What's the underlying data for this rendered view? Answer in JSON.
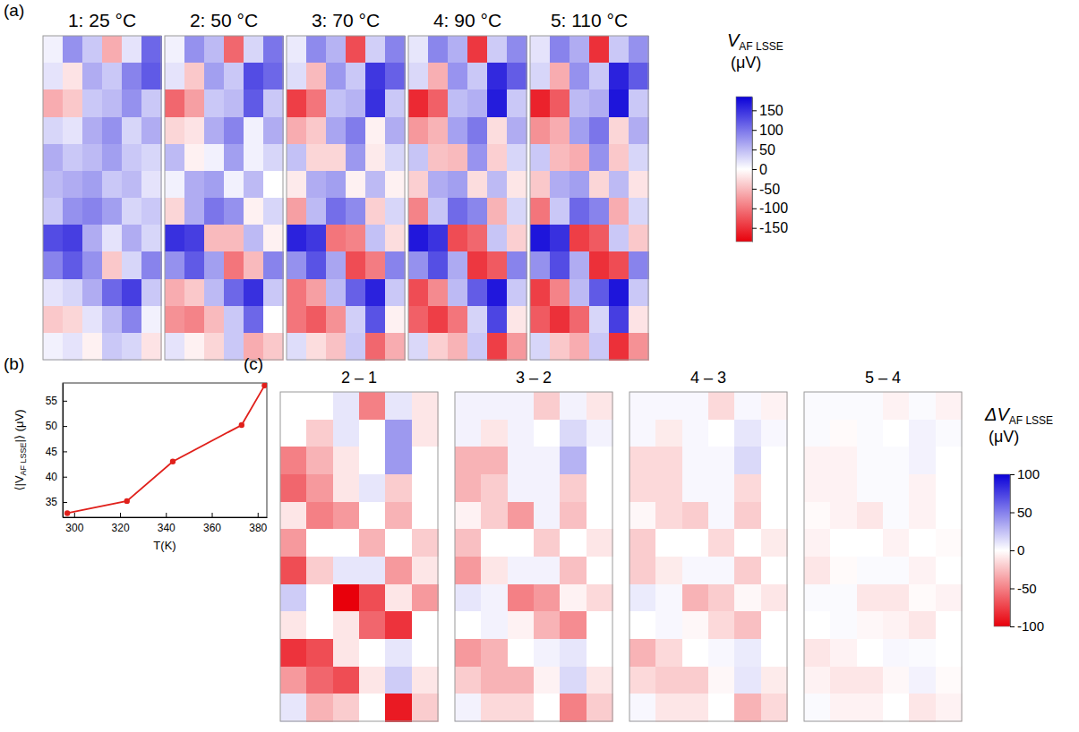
{
  "chart_data": [
    {
      "type": "heatmap",
      "panel": "(a)",
      "maps": [
        {
          "title": "1: 25 °C",
          "cells": [
            [
              10,
              80,
              40,
              -60,
              20,
              110
            ],
            [
              20,
              -20,
              60,
              40,
              90,
              120
            ],
            [
              -60,
              -40,
              40,
              50,
              80,
              40
            ],
            [
              30,
              20,
              60,
              80,
              30,
              60
            ],
            [
              60,
              40,
              50,
              70,
              40,
              30
            ],
            [
              50,
              60,
              70,
              40,
              50,
              20
            ],
            [
              40,
              80,
              90,
              70,
              30,
              40
            ],
            [
              130,
              140,
              60,
              20,
              60,
              30
            ],
            [
              90,
              120,
              80,
              -40,
              30,
              90
            ],
            [
              20,
              30,
              60,
              110,
              140,
              40
            ],
            [
              -40,
              -30,
              20,
              50,
              90,
              10
            ],
            [
              10,
              20,
              -10,
              40,
              30,
              -20
            ]
          ]
        },
        {
          "title": "2: 50 °C",
          "cells": [
            [
              10,
              80,
              50,
              -110,
              30,
              100
            ],
            [
              20,
              -40,
              70,
              40,
              130,
              110
            ],
            [
              -110,
              -70,
              40,
              50,
              120,
              40
            ],
            [
              -30,
              -20,
              60,
              90,
              10,
              60
            ],
            [
              50,
              -10,
              10,
              70,
              10,
              30
            ],
            [
              10,
              60,
              70,
              10,
              50,
              0
            ],
            [
              -30,
              60,
              100,
              80,
              -10,
              30
            ],
            [
              150,
              140,
              -50,
              -50,
              50,
              -10
            ],
            [
              80,
              120,
              70,
              -100,
              -50,
              90
            ],
            [
              -60,
              -40,
              50,
              110,
              150,
              40
            ],
            [
              -80,
              -90,
              -50,
              40,
              110,
              0
            ],
            [
              20,
              -10,
              -30,
              40,
              -60,
              -40
            ]
          ]
        },
        {
          "title": "3: 70 °C",
          "cells": [
            [
              15,
              85,
              55,
              -130,
              35,
              90
            ],
            [
              25,
              -50,
              75,
              40,
              145,
              115
            ],
            [
              -140,
              -100,
              45,
              55,
              150,
              40
            ],
            [
              -60,
              -40,
              65,
              95,
              -10,
              60
            ],
            [
              45,
              -30,
              -30,
              75,
              -15,
              30
            ],
            [
              -15,
              60,
              70,
              -10,
              50,
              -10
            ],
            [
              -70,
              50,
              105,
              85,
              -35,
              30
            ],
            [
              160,
              145,
              -100,
              -90,
              45,
              -25
            ],
            [
              80,
              125,
              65,
              -130,
              -95,
              90
            ],
            [
              -100,
              -70,
              50,
              115,
              160,
              40
            ],
            [
              -100,
              -120,
              -80,
              35,
              125,
              -10
            ],
            [
              25,
              -25,
              -45,
              40,
              -110,
              -60
            ]
          ]
        },
        {
          "title": "4: 90 °C",
          "cells": [
            [
              18,
              88,
              58,
              -145,
              38,
              85
            ],
            [
              28,
              -58,
              78,
              40,
              155,
              118
            ],
            [
              -155,
              -115,
              48,
              58,
              165,
              40
            ],
            [
              -75,
              -55,
              68,
              98,
              -25,
              60
            ],
            [
              42,
              -45,
              -50,
              78,
              -35,
              30
            ],
            [
              -35,
              60,
              70,
              -25,
              50,
              -18
            ],
            [
              -90,
              42,
              108,
              88,
              -55,
              30
            ],
            [
              168,
              148,
              -130,
              -110,
              42,
              -35
            ],
            [
              80,
              128,
              62,
              -145,
              -120,
              90
            ],
            [
              -130,
              -85,
              50,
              118,
              168,
              40
            ],
            [
              -115,
              -140,
              -100,
              32,
              135,
              -18
            ],
            [
              28,
              -35,
              -55,
              40,
              -140,
              -75
            ]
          ]
        },
        {
          "title": "5: 110 °C",
          "cells": [
            [
              20,
              90,
              60,
              -150,
              40,
              80
            ],
            [
              30,
              -60,
              80,
              40,
              160,
              120
            ],
            [
              -160,
              -120,
              50,
              60,
              170,
              40
            ],
            [
              -80,
              -60,
              70,
              100,
              -30,
              60
            ],
            [
              40,
              -50,
              -60,
              80,
              -40,
              30
            ],
            [
              -40,
              60,
              70,
              -30,
              50,
              -20
            ],
            [
              -100,
              40,
              110,
              90,
              -60,
              30
            ],
            [
              170,
              150,
              -140,
              -120,
              40,
              -40
            ],
            [
              80,
              130,
              60,
              -150,
              -130,
              90
            ],
            [
              -140,
              -90,
              50,
              120,
              170,
              40
            ],
            [
              -120,
              -150,
              -110,
              30,
              140,
              -20
            ],
            [
              30,
              -40,
              -60,
              40,
              -150,
              -80
            ]
          ]
        }
      ],
      "colorbar": {
        "title": "V",
        "title_sub": "AF LSSE",
        "unit": "(μV)",
        "range": [
          -185,
          185
        ],
        "ticks": [
          150,
          100,
          50,
          0,
          -50,
          -100,
          -150
        ]
      }
    },
    {
      "type": "line",
      "panel": "(b)",
      "x": [
        297,
        323,
        343,
        373,
        383
      ],
      "values": [
        32.8,
        35.2,
        43.0,
        50.2,
        58.0
      ],
      "color": "#e0201b",
      "marker": "circle",
      "xlim": [
        295,
        384
      ],
      "xticks": [
        300,
        320,
        340,
        360,
        380
      ],
      "ylim": [
        32,
        58.5
      ],
      "yticks": [
        35,
        40,
        45,
        50,
        55
      ],
      "xlabel": "T(K)",
      "ylabel": "⟨|V",
      "ylabel_sub": "AF LSSE",
      "ylabel_end": "|⟩ (μV)"
    },
    {
      "type": "heatmap",
      "panel": "(c)",
      "maps": [
        {
          "title": "2 – 1",
          "cells": [
            [
              0,
              0,
              10,
              -50,
              10,
              -10
            ],
            [
              0,
              -20,
              10,
              0,
              40,
              -10
            ],
            [
              -50,
              -30,
              -10,
              0,
              40,
              0
            ],
            [
              -60,
              -40,
              -10,
              10,
              -20,
              0
            ],
            [
              -10,
              -50,
              -40,
              0,
              -30,
              0
            ],
            [
              -40,
              0,
              0,
              -30,
              0,
              -20
            ],
            [
              -70,
              -20,
              10,
              10,
              -40,
              -10
            ],
            [
              20,
              0,
              -110,
              -70,
              -10,
              -40
            ],
            [
              -10,
              0,
              -10,
              -60,
              -80,
              0
            ],
            [
              -80,
              -70,
              -10,
              0,
              10,
              0
            ],
            [
              -40,
              -60,
              -70,
              -10,
              20,
              -10
            ],
            [
              10,
              -30,
              -20,
              0,
              -90,
              -20
            ]
          ]
        },
        {
          "title": "3 – 2",
          "cells": [
            [
              5,
              5,
              5,
              -20,
              5,
              -10
            ],
            [
              5,
              -10,
              5,
              0,
              15,
              5
            ],
            [
              -30,
              -30,
              5,
              5,
              30,
              0
            ],
            [
              -30,
              -20,
              5,
              5,
              -20,
              0
            ],
            [
              -5,
              -20,
              -40,
              5,
              -25,
              0
            ],
            [
              -25,
              0,
              0,
              -20,
              0,
              -10
            ],
            [
              -40,
              -10,
              5,
              5,
              -25,
              0
            ],
            [
              10,
              5,
              -50,
              -40,
              -5,
              -15
            ],
            [
              0,
              5,
              -5,
              -30,
              -45,
              0
            ],
            [
              -40,
              -30,
              0,
              5,
              10,
              0
            ],
            [
              -20,
              -30,
              -30,
              -5,
              15,
              -10
            ],
            [
              5,
              -15,
              -15,
              0,
              -50,
              -20
            ]
          ]
        },
        {
          "title": "4 – 3",
          "cells": [
            [
              3,
              3,
              3,
              -15,
              3,
              -5
            ],
            [
              3,
              -8,
              3,
              0,
              10,
              3
            ],
            [
              -15,
              -15,
              3,
              3,
              15,
              0
            ],
            [
              -15,
              -15,
              3,
              3,
              -15,
              0
            ],
            [
              -3,
              -15,
              -20,
              3,
              -20,
              0
            ],
            [
              -20,
              0,
              0,
              -15,
              0,
              -8
            ],
            [
              -20,
              -8,
              3,
              3,
              -20,
              0
            ],
            [
              8,
              3,
              -30,
              -20,
              -3,
              -10
            ],
            [
              0,
              3,
              -3,
              -15,
              -25,
              0
            ],
            [
              -30,
              -15,
              0,
              3,
              8,
              0
            ],
            [
              -15,
              -20,
              -20,
              -3,
              10,
              -8
            ],
            [
              3,
              -10,
              -10,
              0,
              -30,
              -15
            ]
          ]
        },
        {
          "title": "5 – 4",
          "cells": [
            [
              2,
              2,
              2,
              -5,
              2,
              -5
            ],
            [
              2,
              -2,
              2,
              0,
              5,
              2
            ],
            [
              -5,
              -5,
              2,
              2,
              5,
              0
            ],
            [
              -5,
              -5,
              2,
              2,
              -5,
              0
            ],
            [
              -2,
              -5,
              -10,
              2,
              -5,
              0
            ],
            [
              -5,
              0,
              0,
              -5,
              0,
              -2
            ],
            [
              -10,
              -2,
              2,
              2,
              -5,
              0
            ],
            [
              2,
              2,
              -10,
              -10,
              -2,
              -5
            ],
            [
              0,
              2,
              -3,
              -5,
              -10,
              0
            ],
            [
              -10,
              -5,
              0,
              3,
              2,
              0
            ],
            [
              -5,
              -10,
              -10,
              -3,
              5,
              -2
            ],
            [
              2,
              -5,
              -5,
              0,
              -10,
              -5
            ]
          ]
        }
      ],
      "colorbar": {
        "title": "ΔV",
        "title_sub": "AF LSSE",
        "unit": "(μV)",
        "range": [
          -100,
          100
        ],
        "ticks": [
          100,
          50,
          0,
          -50,
          -100
        ]
      }
    }
  ]
}
